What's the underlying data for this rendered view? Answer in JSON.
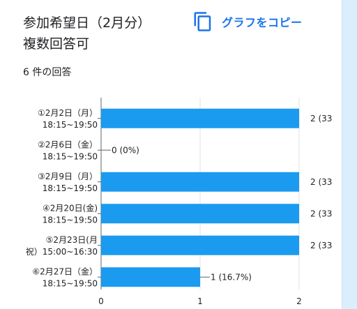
{
  "header": {
    "title_line1": "参加希望日（2月分）",
    "title_line2": "複数回答可",
    "copy_label": "グラフをコピー",
    "copy_icon": "copy-icon"
  },
  "responses_label": "6 件の回答",
  "colors": {
    "bar": "#1a9bef",
    "accent": "#1a73e8",
    "side": "#dbeefc"
  },
  "chart_data": {
    "type": "bar",
    "orientation": "horizontal",
    "categories": [
      [
        "①2月2日（月）",
        "18:15~19:50"
      ],
      [
        "②2月6日（金）",
        "18:15~19:50"
      ],
      [
        "③2月9日（月）",
        "18:15~19:50"
      ],
      [
        "④2月20日(金)",
        "18:15~19:50"
      ],
      [
        "⑤2月23日(月",
        "祝）15:00~16:30"
      ],
      [
        "⑥2月27日（金）",
        "18:15~19:50"
      ]
    ],
    "values": [
      2,
      0,
      2,
      2,
      2,
      1
    ],
    "data_labels": [
      "2 (33",
      "0 (0%)",
      "2 (33",
      "2 (33",
      "2 (33",
      "1 (16.7%)"
    ],
    "xticks": [
      "0",
      "1",
      "2"
    ],
    "xlim": [
      0,
      2
    ],
    "grid": true
  }
}
